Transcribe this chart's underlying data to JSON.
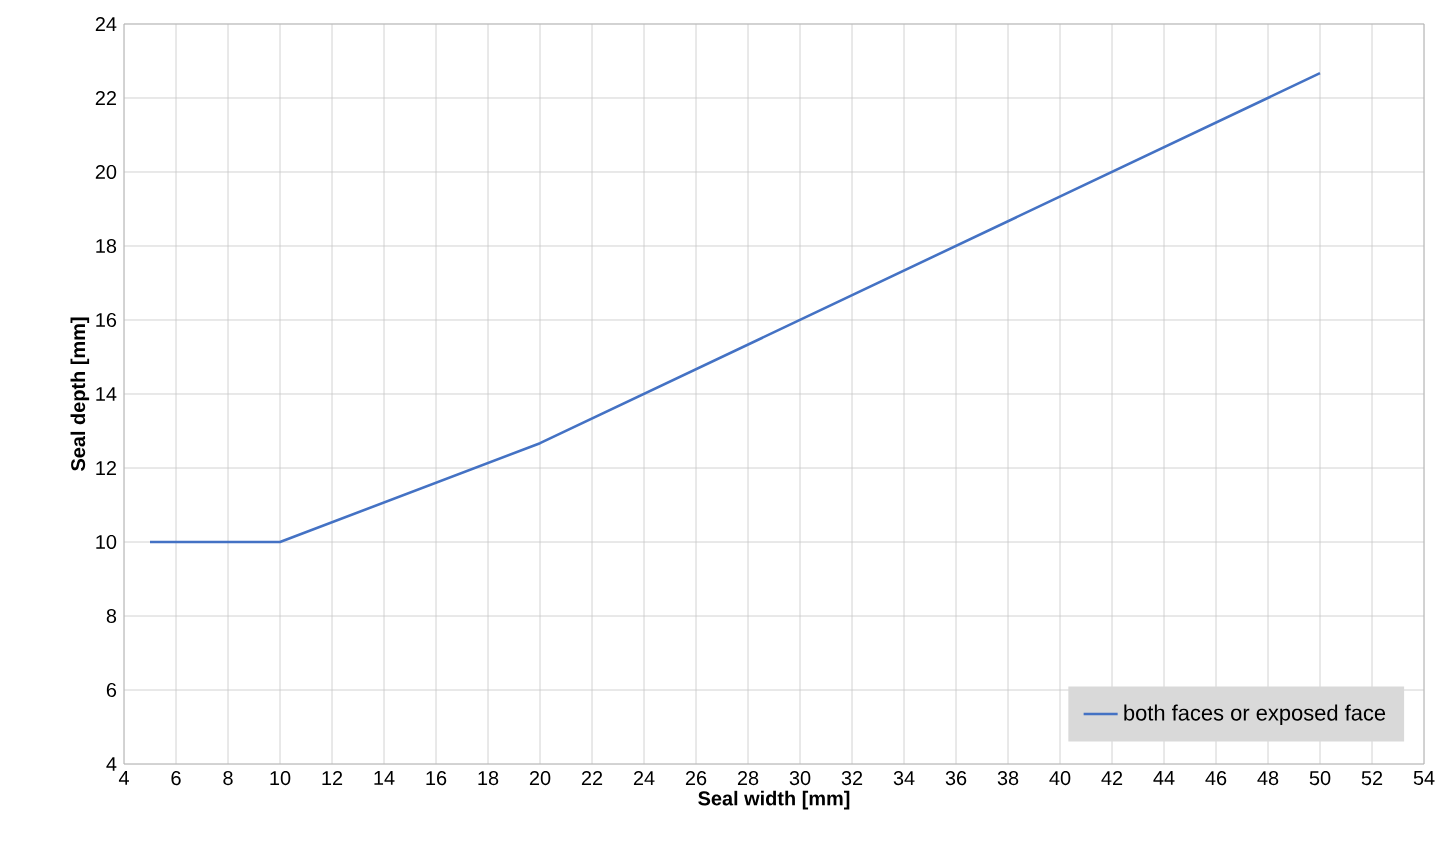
{
  "chart_data": {
    "type": "line",
    "xlabel": "Seal width [mm]",
    "ylabel": "Seal depth [mm]",
    "x": [
      5,
      10,
      20,
      50
    ],
    "series": [
      {
        "name": "both faces or exposed face",
        "color": "#4472c4",
        "values": [
          10,
          10,
          12.67,
          22.67
        ]
      }
    ],
    "xlim": [
      4,
      54
    ],
    "ylim": [
      4,
      24
    ],
    "xticks": [
      4,
      6,
      8,
      10,
      12,
      14,
      16,
      18,
      20,
      22,
      24,
      26,
      28,
      30,
      32,
      34,
      36,
      38,
      40,
      42,
      44,
      46,
      48,
      50,
      52,
      54
    ],
    "yticks": [
      4,
      6,
      8,
      10,
      12,
      14,
      16,
      18,
      20,
      22,
      24
    ],
    "grid": true,
    "legend": "bottom right"
  }
}
